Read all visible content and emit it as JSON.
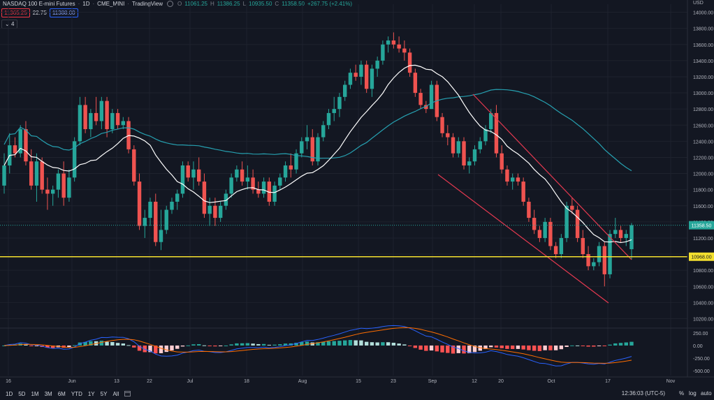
{
  "legend": {
    "symbol": "NASDAQ 100 E-mini Futures",
    "interval": "1D",
    "exchange": "CME_MINI",
    "source": "TradingView",
    "o_label": "O",
    "o": "11061.25",
    "h_label": "H",
    "h": "11386.25",
    "l_label": "L",
    "l": "10935.50",
    "c_label": "C",
    "c": "11358.50",
    "change": "+267.75 (+2.41%)",
    "sell_price": "11365.25",
    "spread": "22.75",
    "buy_price": "11388.00",
    "indicators_count": "4"
  },
  "price_axis": {
    "currency": "USD",
    "ticks": [
      "14000.00",
      "13800.00",
      "13600.00",
      "13400.00",
      "13200.00",
      "13000.00",
      "12800.00",
      "12600.00",
      "12400.00",
      "12200.00",
      "12000.00",
      "11800.00",
      "11600.00",
      "11400.00",
      "11200.00",
      "11000.00",
      "10800.00",
      "10600.00",
      "10400.00",
      "10200.00"
    ],
    "last_price_label": "11358.50",
    "hline_label": "10968.00"
  },
  "macd_axis": {
    "ticks": [
      "250.00",
      "0.00",
      "-250.00",
      "-500.00"
    ]
  },
  "time_axis": {
    "labels": [
      "16",
      "Jun",
      "13",
      "22",
      "Jul",
      "18",
      "Aug",
      "15",
      "23",
      "Sep",
      "12",
      "20",
      "Oct",
      "17",
      "Nov"
    ]
  },
  "toolbar": {
    "timeframes": [
      "1D",
      "5D",
      "1M",
      "3M",
      "6M",
      "YTD",
      "1Y",
      "5Y",
      "All"
    ],
    "calendar_icon": "calendar-icon",
    "clock": "12:36:03 (UTC-5)",
    "percent": "%",
    "log": "log",
    "auto": "auto"
  },
  "colors": {
    "background": "#131722",
    "up": "#26a69a",
    "down": "#ef5350",
    "ma_fast": "#ffffff",
    "ma_slow": "#26a0b0",
    "hline": "#f5e12f",
    "channel": "#e53950"
  },
  "chart_data": {
    "type": "candlestick",
    "symbol": "NASDAQ 100 E-mini Futures",
    "ylim": [
      10100,
      14100
    ],
    "ohlc": [
      [
        11850,
        12250,
        11750,
        12100
      ],
      [
        12100,
        12500,
        12000,
        12350
      ],
      [
        12350,
        12450,
        12200,
        12250
      ],
      [
        12250,
        12600,
        12200,
        12550
      ],
      [
        12550,
        12650,
        12100,
        12150
      ],
      [
        12150,
        12300,
        11800,
        11850
      ],
      [
        11850,
        12250,
        11650,
        12150
      ],
      [
        12150,
        12200,
        11750,
        11800
      ],
      [
        11800,
        11950,
        11550,
        11750
      ],
      [
        11750,
        11850,
        11600,
        11800
      ],
      [
        11800,
        12050,
        11700,
        12000
      ],
      [
        12000,
        12150,
        11600,
        11700
      ],
      [
        11700,
        12050,
        11650,
        11950
      ],
      [
        11950,
        12450,
        11900,
        12400
      ],
      [
        12400,
        12950,
        12350,
        12850
      ],
      [
        12850,
        12950,
        12500,
        12550
      ],
      [
        12550,
        12800,
        12450,
        12750
      ],
      [
        12750,
        12950,
        12600,
        12650
      ],
      [
        12650,
        12950,
        12550,
        12900
      ],
      [
        12900,
        12950,
        12450,
        12550
      ],
      [
        12550,
        12800,
        12500,
        12750
      ],
      [
        12750,
        12800,
        12550,
        12600
      ],
      [
        12600,
        12700,
        12550,
        12650
      ],
      [
        12650,
        12700,
        12250,
        12300
      ],
      [
        12300,
        12350,
        11850,
        11900
      ],
      [
        11900,
        12000,
        11300,
        11350
      ],
      [
        11350,
        11550,
        11200,
        11450
      ],
      [
        11450,
        11700,
        11350,
        11650
      ],
      [
        11650,
        11750,
        11100,
        11150
      ],
      [
        11150,
        11550,
        11050,
        11300
      ],
      [
        11300,
        11600,
        11250,
        11550
      ],
      [
        11550,
        11700,
        11500,
        11650
      ],
      [
        11650,
        11800,
        11550,
        11750
      ],
      [
        11750,
        12150,
        11700,
        12100
      ],
      [
        12100,
        12150,
        11900,
        11950
      ],
      [
        11950,
        12150,
        11800,
        12050
      ],
      [
        12050,
        12200,
        11850,
        11900
      ],
      [
        11900,
        12000,
        11450,
        11500
      ],
      [
        11500,
        11700,
        11350,
        11600
      ],
      [
        11600,
        11700,
        11350,
        11450
      ],
      [
        11450,
        11650,
        11400,
        11600
      ],
      [
        11600,
        11800,
        11550,
        11750
      ],
      [
        11750,
        12000,
        11700,
        11950
      ],
      [
        11950,
        12100,
        11900,
        12050
      ],
      [
        12050,
        12150,
        11850,
        11900
      ],
      [
        11900,
        12100,
        11800,
        11950
      ],
      [
        11950,
        12050,
        11750,
        11800
      ],
      [
        11800,
        11900,
        11700,
        11750
      ],
      [
        11750,
        11950,
        11700,
        11900
      ],
      [
        11900,
        11950,
        11600,
        11650
      ],
      [
        11650,
        11900,
        11600,
        11850
      ],
      [
        11850,
        12000,
        11800,
        11950
      ],
      [
        11950,
        12150,
        11900,
        12100
      ],
      [
        12100,
        12250,
        11950,
        12050
      ],
      [
        12050,
        12300,
        12000,
        12250
      ],
      [
        12250,
        12450,
        12200,
        12400
      ],
      [
        12400,
        12600,
        12300,
        12450
      ],
      [
        12450,
        12550,
        12100,
        12150
      ],
      [
        12150,
        12500,
        12100,
        12450
      ],
      [
        12450,
        12650,
        12400,
        12600
      ],
      [
        12600,
        12800,
        12550,
        12750
      ],
      [
        12750,
        12950,
        12650,
        12800
      ],
      [
        12800,
        13000,
        12700,
        12950
      ],
      [
        12950,
        13150,
        12900,
        13100
      ],
      [
        13100,
        13300,
        13050,
        13250
      ],
      [
        13250,
        13350,
        13150,
        13200
      ],
      [
        13200,
        13400,
        13100,
        13350
      ],
      [
        13350,
        13400,
        13000,
        13050
      ],
      [
        13050,
        13350,
        12950,
        13300
      ],
      [
        13300,
        13450,
        13200,
        13400
      ],
      [
        13400,
        13650,
        13350,
        13600
      ],
      [
        13600,
        13700,
        13500,
        13650
      ],
      [
        13650,
        13750,
        13550,
        13600
      ],
      [
        13600,
        13700,
        13500,
        13550
      ],
      [
        13550,
        13650,
        13400,
        13500
      ],
      [
        13500,
        13550,
        13200,
        13250
      ],
      [
        13250,
        13300,
        12950,
        13000
      ],
      [
        13000,
        13050,
        12800,
        12850
      ],
      [
        12850,
        12900,
        12750,
        12800
      ],
      [
        12800,
        13150,
        12800,
        13100
      ],
      [
        13100,
        13150,
        12650,
        12700
      ],
      [
        12700,
        12750,
        12450,
        12500
      ],
      [
        12500,
        12600,
        12350,
        12450
      ],
      [
        12450,
        12500,
        12200,
        12250
      ],
      [
        12250,
        12450,
        12200,
        12400
      ],
      [
        12400,
        12450,
        12050,
        12100
      ],
      [
        12100,
        12200,
        12000,
        12150
      ],
      [
        12150,
        12350,
        12100,
        12300
      ],
      [
        12300,
        12450,
        12250,
        12400
      ],
      [
        12400,
        12600,
        12350,
        12550
      ],
      [
        12550,
        12800,
        12500,
        12750
      ],
      [
        12750,
        12850,
        12200,
        12250
      ],
      [
        12250,
        12350,
        12000,
        12050
      ],
      [
        12050,
        12100,
        11850,
        11900
      ],
      [
        11900,
        12000,
        11800,
        11950
      ],
      [
        11950,
        12000,
        11850,
        11900
      ],
      [
        11900,
        11950,
        11600,
        11650
      ],
      [
        11650,
        11700,
        11400,
        11450
      ],
      [
        11450,
        11550,
        11250,
        11300
      ],
      [
        11300,
        11350,
        11150,
        11200
      ],
      [
        11200,
        11450,
        11150,
        11400
      ],
      [
        11400,
        11450,
        11050,
        11100
      ],
      [
        11100,
        11150,
        10950,
        11000
      ],
      [
        11000,
        11250,
        10950,
        11200
      ],
      [
        11200,
        11650,
        11150,
        11600
      ],
      [
        11600,
        11700,
        11500,
        11550
      ],
      [
        11550,
        11600,
        11150,
        11200
      ],
      [
        11200,
        11300,
        10950,
        11000
      ],
      [
        11000,
        11100,
        10800,
        10850
      ],
      [
        10850,
        10950,
        10800,
        10900
      ],
      [
        10900,
        11150,
        10850,
        11100
      ],
      [
        11100,
        11150,
        10600,
        10750
      ],
      [
        10750,
        11300,
        10700,
        11250
      ],
      [
        11250,
        11450,
        11200,
        11300
      ],
      [
        11300,
        11350,
        11150,
        11200
      ],
      [
        11200,
        11300,
        11100,
        11250
      ],
      [
        11061.25,
        11386.25,
        10935.5,
        11358.5
      ]
    ],
    "horizontal_line": 10968,
    "last_price": 11358.5,
    "ma_fast_label": "",
    "ma_slow_label": "",
    "macd_ylim": [
      -600,
      320
    ]
  }
}
